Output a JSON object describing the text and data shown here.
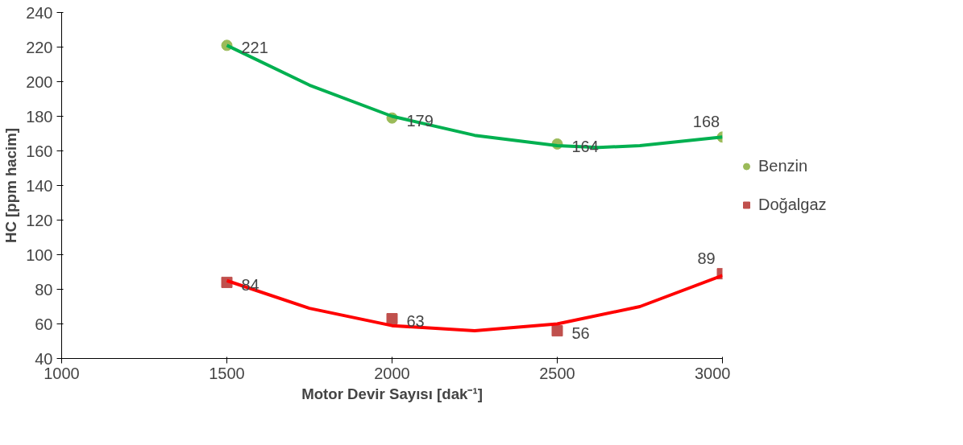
{
  "chart_data": {
    "type": "scatter",
    "xlabel": "Motor Devir Sayısı [dak⁻¹]",
    "ylabel": "HC [ppm hacim]",
    "x": [
      1500,
      2000,
      2500,
      3000
    ],
    "series": [
      {
        "name": "Benzin",
        "marker": "circle",
        "color": "#9bbb59",
        "values": [
          221,
          179,
          164,
          168
        ],
        "value_labels": [
          "221",
          "179",
          "164",
          "168"
        ]
      },
      {
        "name": "Doğalgaz",
        "marker": "square",
        "color": "#c0504d",
        "values": [
          84,
          63,
          56,
          89
        ],
        "value_labels": [
          "84",
          "63",
          "56",
          "89"
        ]
      },
      {
        "type": "line",
        "color": "#00b050",
        "x": [
          1500,
          1750,
          2000,
          2250,
          2500,
          2625,
          2750,
          3000
        ],
        "values": [
          221,
          198,
          180,
          169,
          163,
          162,
          163,
          168
        ]
      },
      {
        "type": "line",
        "color": "#ff0000",
        "x": [
          1500,
          1750,
          2000,
          2250,
          2500,
          2750,
          3000
        ],
        "values": [
          85,
          69,
          59,
          56,
          60,
          70,
          88
        ]
      }
    ],
    "xlim": [
      1000,
      3000
    ],
    "xticks": [
      1000,
      1500,
      2000,
      2500,
      3000
    ],
    "ylim": [
      40,
      240
    ],
    "yticks": [
      40,
      60,
      80,
      100,
      120,
      140,
      160,
      180,
      200,
      220,
      240
    ],
    "grid": false,
    "legend": "right",
    "line_style": "solid"
  }
}
